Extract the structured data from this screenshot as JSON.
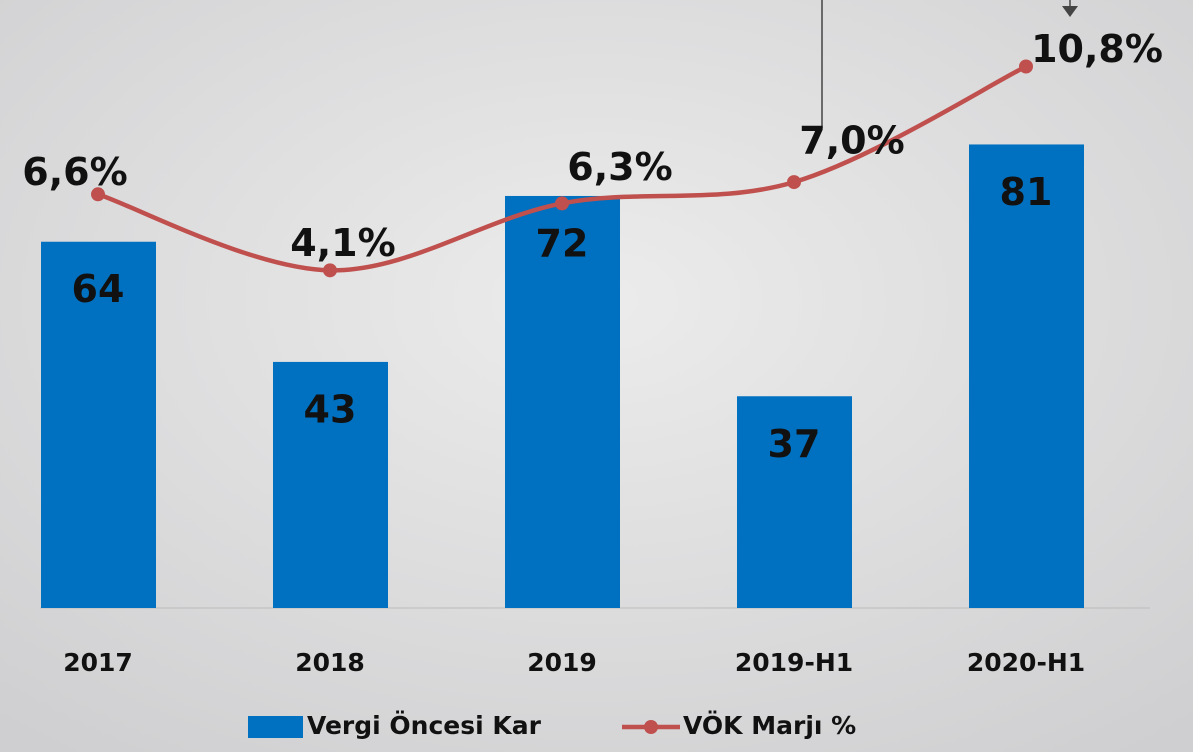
{
  "chart_data": {
    "type": "bar_line",
    "categories": [
      "2017",
      "2018",
      "2019",
      "2019-H1",
      "2020-H1"
    ],
    "series": [
      {
        "name": "Vergi Öncesi Kar",
        "type": "bar",
        "color": "#0070c0",
        "values": [
          64,
          43,
          72,
          37,
          81
        ]
      },
      {
        "name": "VÖK Marjı %",
        "type": "line",
        "axis": "y2",
        "color": "#c0504d",
        "values": [
          6.6,
          4.1,
          6.3,
          7.0,
          10.8
        ],
        "value_labels": [
          "6,6%",
          "4,1%",
          "6,3%",
          "7,0%",
          "10,8%"
        ]
      }
    ],
    "ylim": [
      0,
      101
    ],
    "y2lim": [
      -7,
      12
    ],
    "legend": "bottom"
  }
}
